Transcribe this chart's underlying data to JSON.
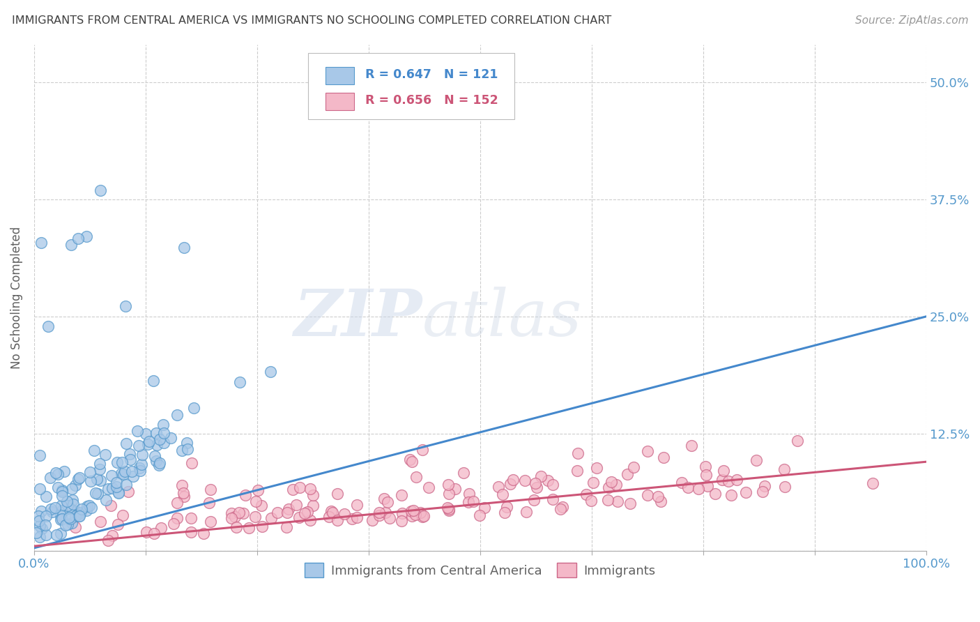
{
  "title": "IMMIGRANTS FROM CENTRAL AMERICA VS IMMIGRANTS NO SCHOOLING COMPLETED CORRELATION CHART",
  "source": "Source: ZipAtlas.com",
  "ylabel": "No Schooling Completed",
  "watermark_zip": "ZIP",
  "watermark_atlas": "atlas",
  "legend_line1": "R = 0.647   N = 121",
  "legend_line2": "R = 0.656   N = 152",
  "series1_color": "#a8c8e8",
  "series1_edge": "#5599cc",
  "series2_color": "#f4b8c8",
  "series2_edge": "#cc6688",
  "line1_color": "#4488cc",
  "line2_color": "#cc5577",
  "xlim": [
    0.0,
    1.0
  ],
  "ylim": [
    0.0,
    0.54
  ],
  "xticks": [
    0.0,
    0.125,
    0.25,
    0.375,
    0.5,
    0.625,
    0.75,
    0.875,
    1.0
  ],
  "yticks": [
    0.0,
    0.125,
    0.25,
    0.375,
    0.5
  ],
  "xtick_labels": [
    "0.0%",
    "",
    "",
    "",
    "",
    "",
    "",
    "",
    "100.0%"
  ],
  "ytick_labels": [
    "",
    "12.5%",
    "25.0%",
    "37.5%",
    "50.0%"
  ],
  "background_color": "#ffffff",
  "grid_color": "#cccccc",
  "title_color": "#404040",
  "tick_color": "#5599cc",
  "legend_label1": "Immigrants from Central America",
  "legend_label2": "Immigrants"
}
